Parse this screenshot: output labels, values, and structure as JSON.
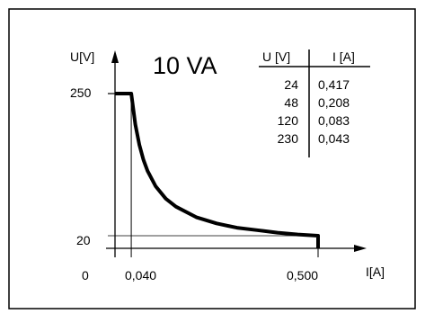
{
  "chart_data": {
    "type": "line",
    "title": "10 VA",
    "ylabel": "U[V]",
    "xlabel": "I[A]",
    "origin_label": "0",
    "x_ticks": [
      "0,040",
      "0,500"
    ],
    "y_ticks": [
      "250",
      "20"
    ],
    "xlim": [
      0,
      0.55
    ],
    "ylim": [
      0,
      280
    ],
    "grid": false,
    "series": [
      {
        "x": [
          0,
          0.04,
          0.05,
          0.06,
          0.07,
          0.08,
          0.1,
          0.125,
          0.15,
          0.2,
          0.25,
          0.3,
          0.35,
          0.4,
          0.45,
          0.5,
          0.5
        ],
        "y": [
          250,
          250,
          200,
          167,
          143,
          125,
          100,
          80,
          67,
          50,
          40,
          33,
          29,
          25,
          22,
          20,
          0
        ]
      }
    ],
    "table": {
      "columns": [
        "U [V]",
        "I [A]"
      ],
      "rows": [
        [
          "24",
          "0,417"
        ],
        [
          "48",
          "0,208"
        ],
        [
          "120",
          "0,083"
        ],
        [
          "230",
          "0,043"
        ]
      ]
    }
  }
}
